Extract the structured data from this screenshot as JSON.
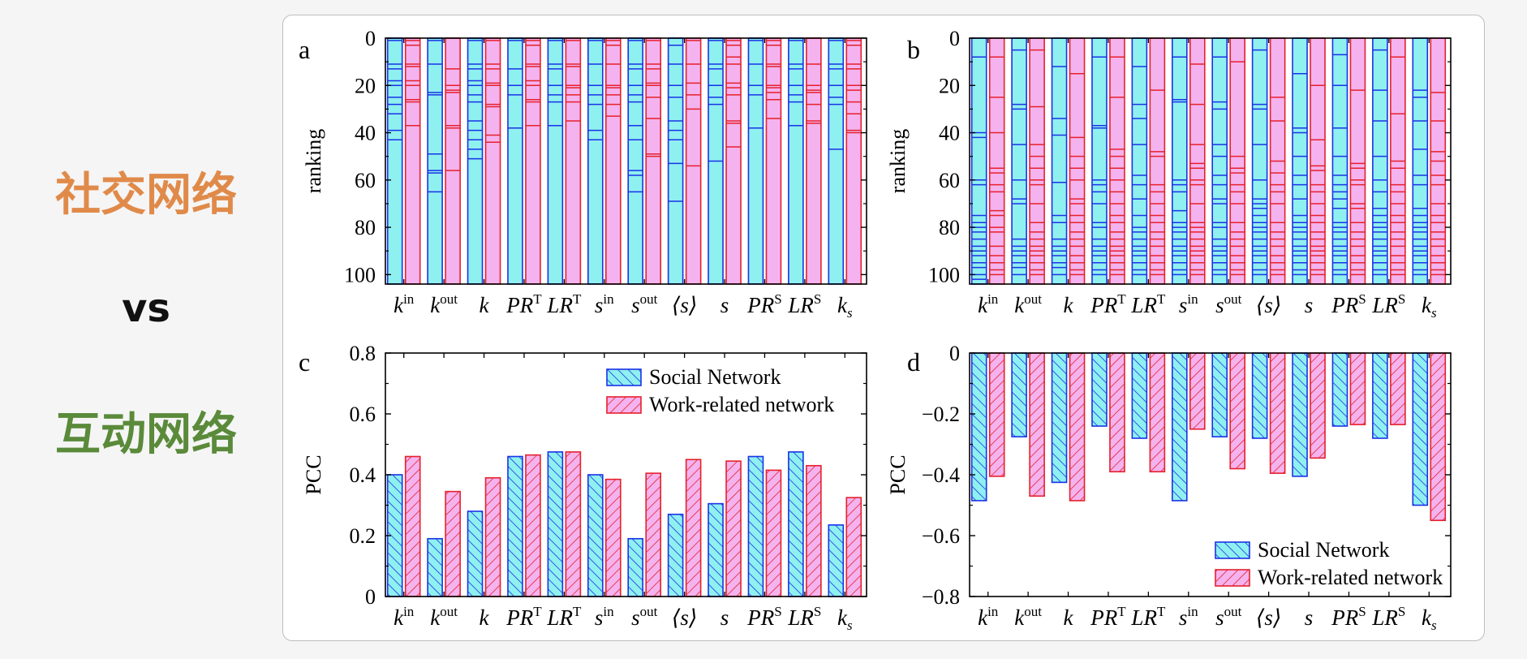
{
  "labels": {
    "top": "社交网络",
    "vs": "vs",
    "bottom": "互动网络"
  },
  "colors": {
    "top_label": "#e08a4a",
    "vs_label": "#111111",
    "bottom_label": "#5a8a3a",
    "social_fill": "#8ff0f0",
    "social_edge": "#1a32e6",
    "work_fill": "#f4b3ee",
    "work_edge": "#e6202c"
  },
  "chart_data": [
    {
      "panel": "a",
      "type": "bar",
      "ylabel": "ranking",
      "ylim": [
        104,
        0
      ],
      "yticks": [
        0,
        20,
        40,
        60,
        80,
        100
      ],
      "categories": [
        "k^in",
        "k^out",
        "k",
        "PR^T",
        "LR^T",
        "s^in",
        "s^out",
        "⟨s⟩",
        "s",
        "PR^S",
        "LR^S",
        "k_s"
      ],
      "social_lines": [
        [
          0,
          1,
          11,
          13,
          18,
          20,
          25,
          28,
          32,
          39,
          43
        ],
        [
          1,
          11,
          23,
          24,
          49,
          56,
          57,
          65
        ],
        [
          0,
          1,
          11,
          13,
          18,
          20,
          24,
          27,
          35,
          39,
          43,
          47,
          51
        ],
        [
          0,
          1,
          13,
          20,
          24,
          38
        ],
        [
          0,
          1,
          11,
          13,
          20,
          24,
          27,
          37
        ],
        [
          0,
          1,
          11,
          20,
          24,
          28,
          39,
          43
        ],
        [
          0,
          1,
          11,
          13,
          20,
          24,
          27,
          37,
          43,
          56,
          58,
          65
        ],
        [
          0,
          3,
          11,
          20,
          25,
          35,
          39,
          43,
          53,
          69
        ],
        [
          0,
          1,
          11,
          13,
          20,
          25,
          28,
          52
        ],
        [
          0,
          1,
          11,
          20,
          24,
          38
        ],
        [
          0,
          1,
          11,
          13,
          20,
          24,
          27,
          37
        ],
        [
          0,
          1,
          11,
          13,
          20,
          25,
          28,
          47
        ]
      ],
      "work_lines": [
        [
          1,
          3,
          11,
          12,
          18,
          20,
          26,
          27,
          37
        ],
        [
          0,
          13,
          20,
          22,
          23,
          37,
          38,
          56
        ],
        [
          1,
          11,
          13,
          19,
          20,
          28,
          29,
          41,
          44
        ],
        [
          1,
          3,
          11,
          12,
          18,
          20,
          26,
          27,
          37
        ],
        [
          1,
          11,
          12,
          20,
          21,
          24,
          27,
          35
        ],
        [
          1,
          3,
          11,
          20,
          21,
          24,
          28,
          33
        ],
        [
          1,
          11,
          13,
          19,
          20,
          25,
          34,
          49,
          50
        ],
        [
          1,
          11,
          19,
          24,
          30,
          54
        ],
        [
          1,
          3,
          8,
          11,
          19,
          21,
          24,
          35,
          36,
          46
        ],
        [
          1,
          3,
          11,
          12,
          20,
          21,
          23,
          26,
          34
        ],
        [
          0,
          11,
          20,
          22,
          23,
          28,
          35,
          36
        ],
        [
          1,
          3,
          11,
          13,
          20,
          22,
          27,
          32,
          39,
          40
        ]
      ]
    },
    {
      "panel": "b",
      "type": "bar",
      "ylabel": "ranking",
      "ylim": [
        104,
        0
      ],
      "yticks": [
        0,
        20,
        40,
        60,
        80,
        100
      ],
      "categories": [
        "k^in",
        "k^out",
        "k",
        "PR^T",
        "LR^T",
        "s^in",
        "s^out",
        "⟨s⟩",
        "s",
        "PR^S",
        "LR^S",
        "k_s"
      ],
      "social_lines": [
        [
          8,
          40,
          42,
          60,
          62,
          75,
          78,
          80,
          82,
          85,
          88,
          90,
          92,
          95,
          97,
          100,
          102
        ],
        [
          5,
          28,
          30,
          45,
          60,
          68,
          70,
          85,
          88,
          90,
          92,
          95,
          97,
          100
        ],
        [
          12,
          34,
          41,
          61,
          75,
          78,
          85,
          88,
          90,
          92,
          95,
          97,
          100
        ],
        [
          8,
          37,
          38,
          60,
          62,
          65,
          70,
          78,
          80,
          85,
          88,
          90,
          92,
          95,
          98,
          100
        ],
        [
          12,
          28,
          34,
          45,
          58,
          62,
          68,
          75,
          80,
          82,
          85,
          88,
          90,
          92,
          95,
          98,
          100
        ],
        [
          8,
          26,
          27,
          60,
          62,
          65,
          73,
          78,
          80,
          82,
          85,
          88,
          90,
          92,
          95,
          98,
          100
        ],
        [
          8,
          27,
          30,
          45,
          50,
          58,
          62,
          68,
          70,
          78,
          80,
          85,
          88,
          90,
          92,
          95,
          98,
          100
        ],
        [
          5,
          28,
          30,
          45,
          60,
          68,
          70,
          72,
          75,
          78,
          80,
          82,
          85,
          88,
          90,
          92,
          95,
          98,
          100
        ],
        [
          15,
          38,
          40,
          50,
          58,
          62,
          68,
          75,
          78,
          80,
          82,
          85,
          88,
          90,
          92,
          95,
          98,
          100
        ],
        [
          7,
          20,
          38,
          50,
          58,
          62,
          65,
          68,
          72,
          78,
          80,
          82,
          85,
          88,
          90,
          92,
          95,
          98,
          100
        ],
        [
          5,
          22,
          35,
          50,
          60,
          65,
          72,
          75,
          78,
          80,
          82,
          85,
          88,
          90,
          92,
          95,
          98,
          100
        ],
        [
          22,
          25,
          35,
          47,
          58,
          62,
          72,
          75,
          78,
          80,
          82,
          85,
          88,
          90,
          92,
          95,
          98,
          100
        ]
      ],
      "work_lines": [
        [
          8,
          25,
          40,
          55,
          57,
          62,
          65,
          73,
          75,
          80,
          82,
          88,
          92,
          95,
          98,
          100
        ],
        [
          5,
          29,
          45,
          50,
          55,
          60,
          62,
          70,
          78,
          82,
          85,
          88,
          90,
          92,
          95,
          98,
          100
        ],
        [
          15,
          42,
          50,
          55,
          60,
          68,
          70,
          75,
          78,
          82,
          85,
          88,
          92,
          95,
          98,
          100
        ],
        [
          8,
          25,
          47,
          50,
          55,
          60,
          65,
          70,
          75,
          78,
          82,
          85,
          88,
          90,
          92,
          95,
          98,
          100
        ],
        [
          22,
          48,
          50,
          62,
          65,
          70,
          75,
          78,
          82,
          85,
          88,
          92,
          95,
          98,
          100
        ],
        [
          11,
          28,
          45,
          53,
          55,
          60,
          62,
          70,
          78,
          80,
          82,
          85,
          88,
          90,
          92,
          95,
          98,
          100
        ],
        [
          10,
          50,
          55,
          57,
          62,
          65,
          70,
          78,
          82,
          85,
          88,
          92,
          95,
          98,
          100
        ],
        [
          25,
          35,
          52,
          57,
          62,
          65,
          70,
          78,
          82,
          85,
          88,
          92,
          95,
          98,
          100
        ],
        [
          20,
          43,
          54,
          56,
          62,
          65,
          70,
          75,
          78,
          82,
          85,
          88,
          90,
          92,
          95,
          98,
          100
        ],
        [
          22,
          53,
          55,
          60,
          62,
          70,
          72,
          78,
          82,
          85,
          88,
          92,
          95,
          98,
          100
        ],
        [
          8,
          32,
          52,
          55,
          62,
          65,
          70,
          75,
          78,
          82,
          85,
          88,
          92,
          95,
          98,
          100
        ],
        [
          23,
          35,
          48,
          52,
          58,
          62,
          70,
          75,
          78,
          82,
          85,
          88,
          92,
          95,
          98,
          100
        ]
      ]
    },
    {
      "panel": "c",
      "type": "bar",
      "ylabel": "PCC",
      "ylim": [
        0,
        0.8
      ],
      "yticks": [
        0,
        0.2,
        0.4,
        0.6,
        0.8
      ],
      "categories": [
        "k^in",
        "k^out",
        "k",
        "PR^T",
        "LR^T",
        "s^in",
        "s^out",
        "⟨s⟩",
        "s",
        "PR^S",
        "LR^S",
        "k_s"
      ],
      "series": [
        {
          "name": "Social Network",
          "values": [
            0.4,
            0.19,
            0.28,
            0.46,
            0.475,
            0.4,
            0.19,
            0.27,
            0.305,
            0.46,
            0.475,
            0.235
          ]
        },
        {
          "name": "Work-related network",
          "values": [
            0.46,
            0.345,
            0.39,
            0.465,
            0.475,
            0.385,
            0.405,
            0.45,
            0.445,
            0.415,
            0.43,
            0.325
          ]
        }
      ],
      "legend": "top-right"
    },
    {
      "panel": "d",
      "type": "bar",
      "ylabel": "PCC",
      "ylim": [
        -0.8,
        0
      ],
      "yticks": [
        0,
        -0.2,
        -0.4,
        -0.6,
        -0.8
      ],
      "categories": [
        "k^in",
        "k^out",
        "k",
        "PR^T",
        "LR^T",
        "s^in",
        "s^out",
        "⟨s⟩",
        "s",
        "PR^S",
        "LR^S",
        "k_s"
      ],
      "series": [
        {
          "name": "Social Network",
          "values": [
            -0.485,
            -0.275,
            -0.425,
            -0.24,
            -0.28,
            -0.485,
            -0.275,
            -0.28,
            -0.405,
            -0.24,
            -0.28,
            -0.5
          ]
        },
        {
          "name": "Work-related network",
          "values": [
            -0.405,
            -0.47,
            -0.485,
            -0.39,
            -0.39,
            -0.25,
            -0.38,
            -0.395,
            -0.345,
            -0.235,
            -0.235,
            -0.55
          ]
        }
      ],
      "legend": "bottom-right"
    }
  ]
}
